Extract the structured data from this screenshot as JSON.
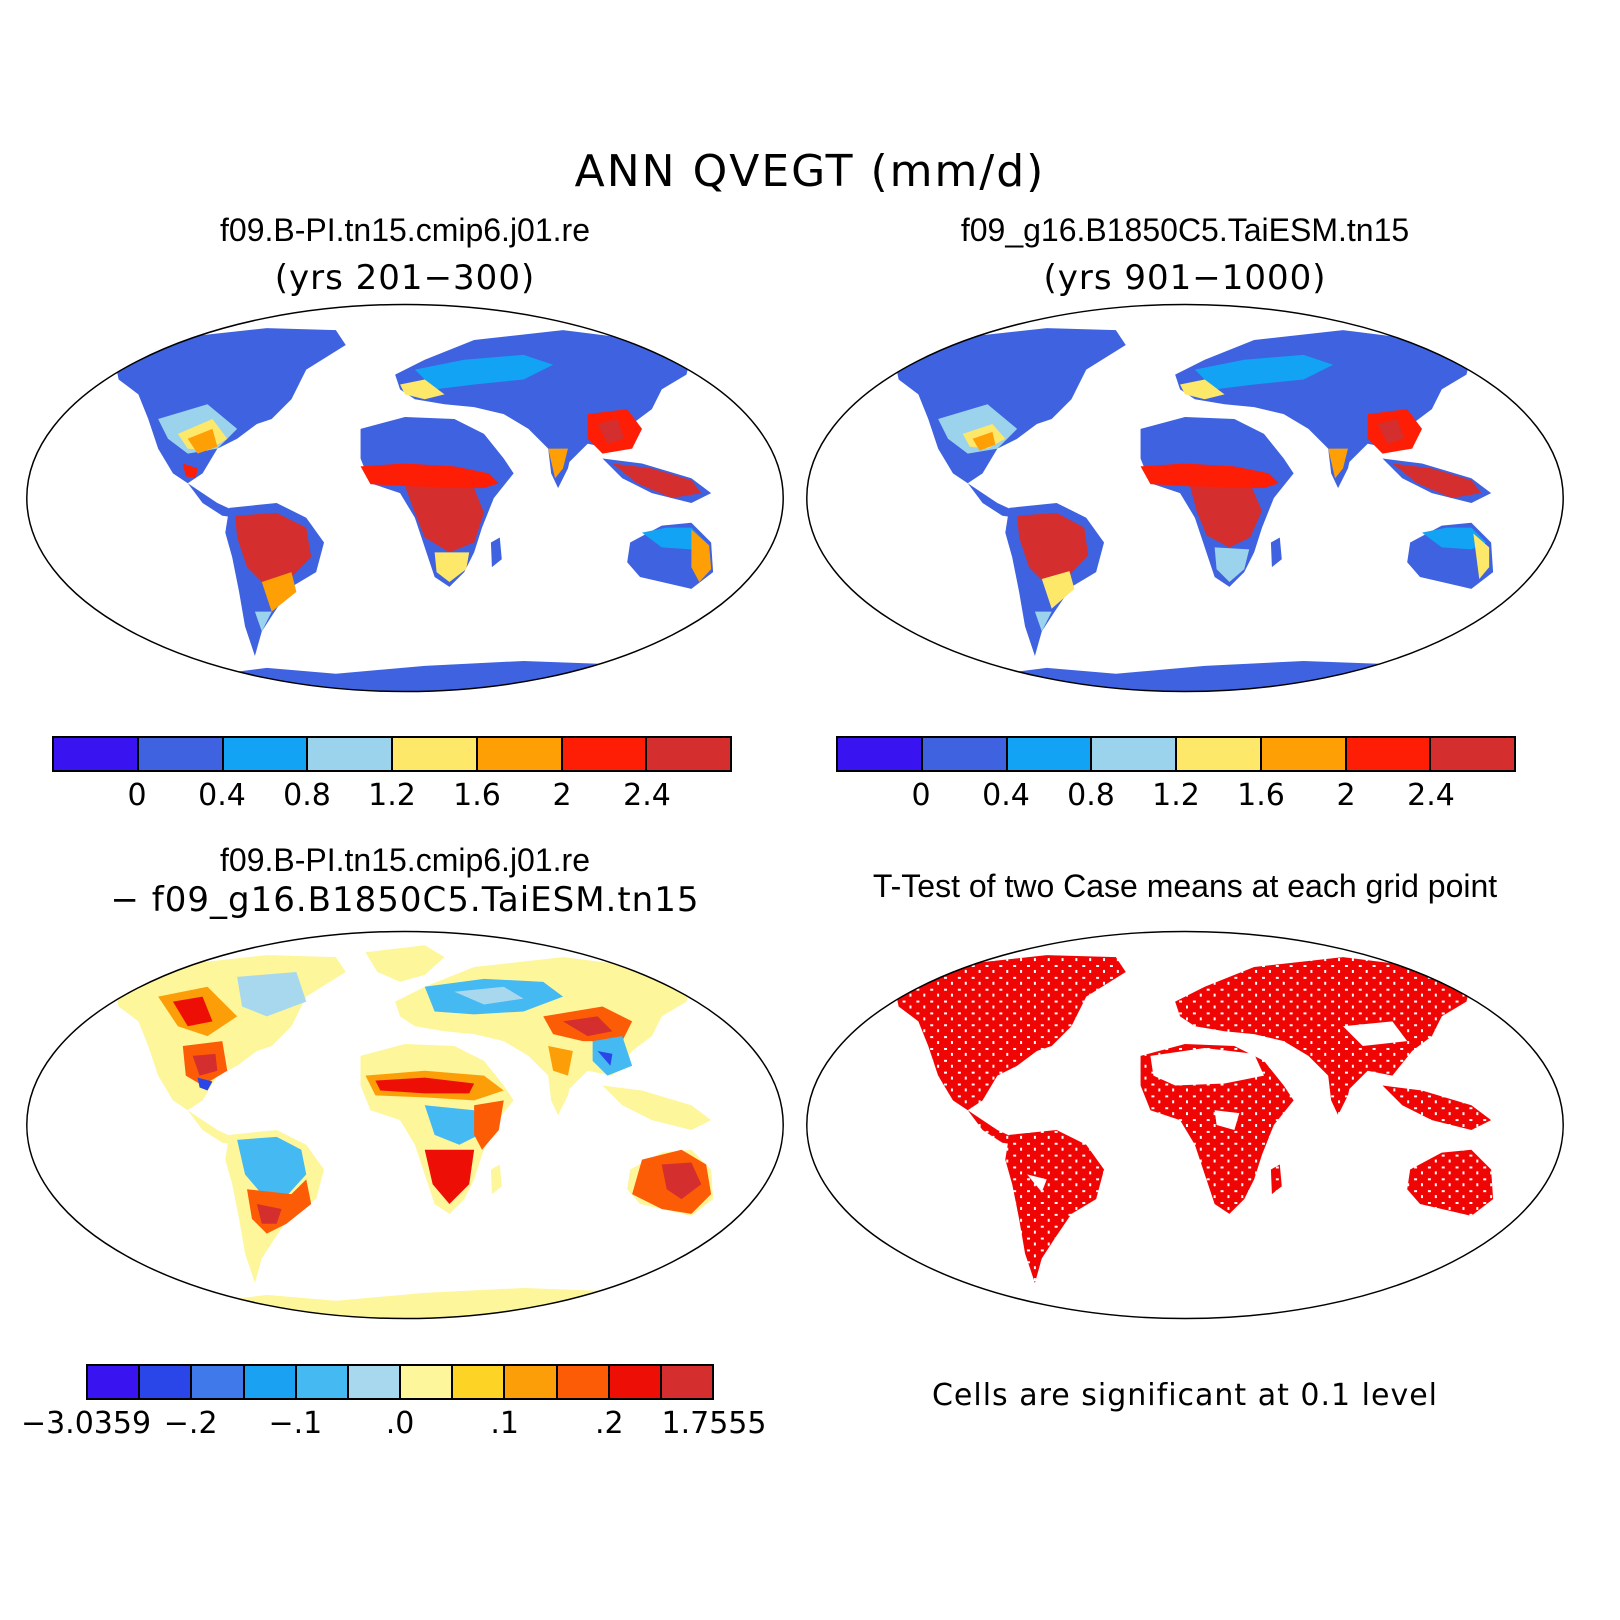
{
  "main_title": "ANN QVEGT (mm/d)",
  "panels": {
    "p1": {
      "title": "f09.B-PI.tn15.cmip6.j01.re",
      "subtitle": "(yrs 201−300)"
    },
    "p2": {
      "title": "f09_g16.B1850C5.TaiESM.tn15",
      "subtitle": "(yrs 901−1000)"
    },
    "p3": {
      "title": "f09.B-PI.tn15.cmip6.j01.re",
      "subtitle": "− f09_g16.B1850C5.TaiESM.tn15"
    },
    "p4": {
      "title": "T-Test of two Case means at each grid point",
      "footnote": "Cells are significant at 0.1 level"
    }
  },
  "colorbar_abs": {
    "colors": [
      "#3a14f0",
      "#3f63e0",
      "#12a3f5",
      "#9cd3ec",
      "#fde869",
      "#fe9f05",
      "#fe1d05",
      "#d42e2e"
    ],
    "ticks": [
      "0",
      "0.4",
      "0.8",
      "1.2",
      "1.6",
      "2",
      "2.4"
    ]
  },
  "colorbar_diff": {
    "colors": [
      "#3a14f0",
      "#2a46e8",
      "#3f79ea",
      "#1aa1f1",
      "#44b9f2",
      "#a7d8ee",
      "#fdf69b",
      "#fdd425",
      "#fc9e07",
      "#fc5c05",
      "#ed0e06",
      "#d42e2e"
    ],
    "ticks": [
      "−3.0359",
      "−.2",
      "−.1",
      ".0",
      ".1",
      ".2",
      "1.7555"
    ]
  },
  "map_colors": {
    "land_low": "#3f63e0",
    "land_mid": "#12a3f5",
    "land_light": "#9cd3ec",
    "land_yellow": "#fde869",
    "land_orange": "#fe9f05",
    "land_red": "#fe1d05",
    "land_darkred": "#d42e2e",
    "diff_neutral": "#fdf69b",
    "significant": "#f00505"
  }
}
